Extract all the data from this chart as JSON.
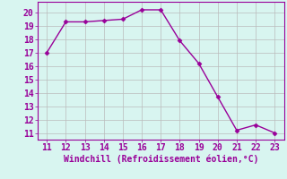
{
  "x": [
    11,
    12,
    13,
    14,
    15,
    16,
    17,
    18,
    19,
    20,
    21,
    22,
    23
  ],
  "y": [
    17.0,
    19.3,
    19.3,
    19.4,
    19.5,
    20.2,
    20.2,
    17.9,
    16.2,
    13.7,
    11.2,
    11.6,
    11.0
  ],
  "line_color": "#990099",
  "marker": "D",
  "marker_size": 2.5,
  "bg_color": "#d8f5f0",
  "grid_color": "#bbbbbb",
  "xlabel": "Windchill (Refroidissement éolien,°C)",
  "xlim": [
    10.5,
    23.5
  ],
  "ylim": [
    10.5,
    20.8
  ],
  "xticks": [
    11,
    12,
    13,
    14,
    15,
    16,
    17,
    18,
    19,
    20,
    21,
    22,
    23
  ],
  "yticks": [
    11,
    12,
    13,
    14,
    15,
    16,
    17,
    18,
    19,
    20
  ],
  "tick_color": "#990099",
  "label_color": "#990099",
  "font_size": 7.0,
  "linewidth": 1.0,
  "spine_color": "#990099"
}
